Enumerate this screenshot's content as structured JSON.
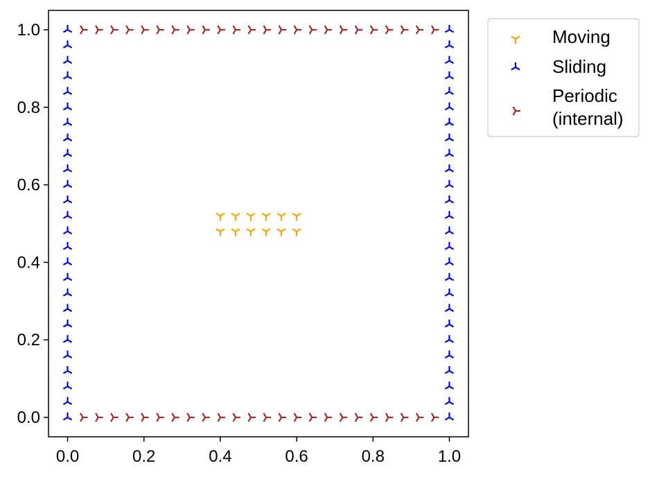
{
  "chart_data": {
    "type": "scatter",
    "xlim": [
      -0.05,
      1.05
    ],
    "ylim": [
      -0.05,
      1.05
    ],
    "x_ticks": [
      "0.0",
      "0.2",
      "0.4",
      "0.6",
      "0.8",
      "1.0"
    ],
    "y_ticks": [
      "0.0",
      "0.2",
      "0.4",
      "0.6",
      "0.8",
      "1.0"
    ],
    "x_tick_values": [
      0.0,
      0.2,
      0.4,
      0.6,
      0.8,
      1.0
    ],
    "y_tick_values": [
      0.0,
      0.2,
      0.4,
      0.6,
      0.8,
      1.0
    ],
    "grid": false,
    "legend_position": "outside upper right",
    "series": [
      {
        "name": "Moving",
        "marker": "tri_down",
        "color": "#ffa500",
        "points": [
          [
            0.4,
            0.52
          ],
          [
            0.44,
            0.52
          ],
          [
            0.48,
            0.52
          ],
          [
            0.52,
            0.52
          ],
          [
            0.56,
            0.52
          ],
          [
            0.6,
            0.52
          ],
          [
            0.4,
            0.48
          ],
          [
            0.44,
            0.48
          ],
          [
            0.48,
            0.48
          ],
          [
            0.52,
            0.48
          ],
          [
            0.56,
            0.48
          ],
          [
            0.6,
            0.48
          ]
        ]
      },
      {
        "name": "Sliding",
        "marker": "tri_up",
        "color": "#0000ff",
        "points": [
          [
            0.0,
            0.0
          ],
          [
            0.0,
            0.04
          ],
          [
            0.0,
            0.08
          ],
          [
            0.0,
            0.12
          ],
          [
            0.0,
            0.16
          ],
          [
            0.0,
            0.2
          ],
          [
            0.0,
            0.24
          ],
          [
            0.0,
            0.28
          ],
          [
            0.0,
            0.32
          ],
          [
            0.0,
            0.36
          ],
          [
            0.0,
            0.4
          ],
          [
            0.0,
            0.44
          ],
          [
            0.0,
            0.48
          ],
          [
            0.0,
            0.52
          ],
          [
            0.0,
            0.56
          ],
          [
            0.0,
            0.6
          ],
          [
            0.0,
            0.64
          ],
          [
            0.0,
            0.68
          ],
          [
            0.0,
            0.72
          ],
          [
            0.0,
            0.76
          ],
          [
            0.0,
            0.8
          ],
          [
            0.0,
            0.84
          ],
          [
            0.0,
            0.88
          ],
          [
            0.0,
            0.92
          ],
          [
            0.0,
            0.96
          ],
          [
            0.0,
            1.0
          ],
          [
            1.0,
            0.0
          ],
          [
            1.0,
            0.04
          ],
          [
            1.0,
            0.08
          ],
          [
            1.0,
            0.12
          ],
          [
            1.0,
            0.16
          ],
          [
            1.0,
            0.2
          ],
          [
            1.0,
            0.24
          ],
          [
            1.0,
            0.28
          ],
          [
            1.0,
            0.32
          ],
          [
            1.0,
            0.36
          ],
          [
            1.0,
            0.4
          ],
          [
            1.0,
            0.44
          ],
          [
            1.0,
            0.48
          ],
          [
            1.0,
            0.52
          ],
          [
            1.0,
            0.56
          ],
          [
            1.0,
            0.6
          ],
          [
            1.0,
            0.64
          ],
          [
            1.0,
            0.68
          ],
          [
            1.0,
            0.72
          ],
          [
            1.0,
            0.76
          ],
          [
            1.0,
            0.8
          ],
          [
            1.0,
            0.84
          ],
          [
            1.0,
            0.88
          ],
          [
            1.0,
            0.92
          ],
          [
            1.0,
            0.96
          ],
          [
            1.0,
            1.0
          ]
        ]
      },
      {
        "name": "Periodic\n(internal)",
        "marker": "tri_right",
        "color": "#a52a2a",
        "points": [
          [
            0.04,
            0.0
          ],
          [
            0.08,
            0.0
          ],
          [
            0.12,
            0.0
          ],
          [
            0.16,
            0.0
          ],
          [
            0.2,
            0.0
          ],
          [
            0.24,
            0.0
          ],
          [
            0.28,
            0.0
          ],
          [
            0.32,
            0.0
          ],
          [
            0.36,
            0.0
          ],
          [
            0.4,
            0.0
          ],
          [
            0.44,
            0.0
          ],
          [
            0.48,
            0.0
          ],
          [
            0.52,
            0.0
          ],
          [
            0.56,
            0.0
          ],
          [
            0.6,
            0.0
          ],
          [
            0.64,
            0.0
          ],
          [
            0.68,
            0.0
          ],
          [
            0.72,
            0.0
          ],
          [
            0.76,
            0.0
          ],
          [
            0.8,
            0.0
          ],
          [
            0.84,
            0.0
          ],
          [
            0.88,
            0.0
          ],
          [
            0.92,
            0.0
          ],
          [
            0.96,
            0.0
          ],
          [
            0.04,
            1.0
          ],
          [
            0.08,
            1.0
          ],
          [
            0.12,
            1.0
          ],
          [
            0.16,
            1.0
          ],
          [
            0.2,
            1.0
          ],
          [
            0.24,
            1.0
          ],
          [
            0.28,
            1.0
          ],
          [
            0.32,
            1.0
          ],
          [
            0.36,
            1.0
          ],
          [
            0.4,
            1.0
          ],
          [
            0.44,
            1.0
          ],
          [
            0.48,
            1.0
          ],
          [
            0.52,
            1.0
          ],
          [
            0.56,
            1.0
          ],
          [
            0.6,
            1.0
          ],
          [
            0.64,
            1.0
          ],
          [
            0.68,
            1.0
          ],
          [
            0.72,
            1.0
          ],
          [
            0.76,
            1.0
          ],
          [
            0.8,
            1.0
          ],
          [
            0.84,
            1.0
          ],
          [
            0.88,
            1.0
          ],
          [
            0.92,
            1.0
          ],
          [
            0.96,
            1.0
          ]
        ]
      }
    ],
    "legend": [
      {
        "lines": [
          "Moving"
        ],
        "marker": "tri_down",
        "color": "#ffa500"
      },
      {
        "lines": [
          "Sliding"
        ],
        "marker": "tri_up",
        "color": "#0000ff"
      },
      {
        "lines": [
          "Periodic",
          "(internal)"
        ],
        "marker": "tri_right",
        "color": "#a52a2a"
      }
    ]
  }
}
